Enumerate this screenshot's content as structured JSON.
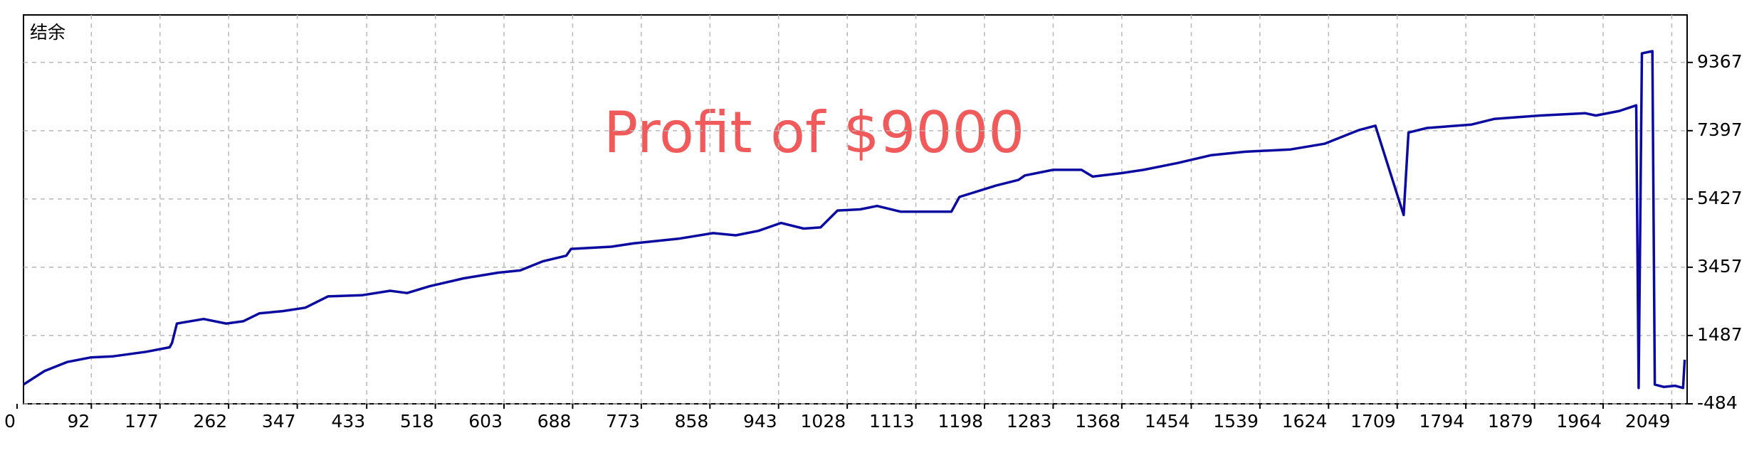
{
  "chart_data": {
    "type": "line",
    "title": "结余",
    "annotation": "Profit of $9000",
    "color": "#0a0aa0",
    "annotation_color": "#f05a5a",
    "grid": true,
    "xlim": [
      8,
      2068
    ],
    "ylim": [
      -484,
      10737
    ],
    "xticks": [
      0,
      92,
      177,
      262,
      347,
      433,
      518,
      603,
      688,
      773,
      858,
      943,
      1028,
      1113,
      1198,
      1283,
      1368,
      1454,
      1539,
      1624,
      1709,
      1794,
      1879,
      1964,
      2049
    ],
    "yticks": [
      -484,
      1487,
      3457,
      5427,
      7397,
      9367
    ],
    "x": [
      8,
      34,
      62,
      91,
      119,
      160,
      189,
      192,
      198,
      231,
      259,
      280,
      300,
      329,
      357,
      385,
      427,
      462,
      483,
      511,
      553,
      596,
      623,
      651,
      680,
      686,
      736,
      764,
      819,
      862,
      890,
      918,
      946,
      974,
      995,
      1016,
      1044,
      1065,
      1094,
      1157,
      1167,
      1212,
      1240,
      1248,
      1283,
      1318,
      1332,
      1367,
      1395,
      1437,
      1479,
      1521,
      1577,
      1619,
      1661,
      1682,
      1717,
      1723,
      1746,
      1801,
      1829,
      1886,
      1942,
      1955,
      1984,
      2005,
      2008,
      2012,
      2025,
      2028,
      2039,
      2053,
      2063,
      2065
    ],
    "values": [
      71,
      462,
      723,
      853,
      886,
      1017,
      1147,
      1277,
      1832,
      1963,
      1832,
      1897,
      2126,
      2191,
      2289,
      2615,
      2648,
      2778,
      2713,
      2908,
      3137,
      3300,
      3365,
      3626,
      3789,
      3985,
      4050,
      4148,
      4279,
      4442,
      4377,
      4507,
      4735,
      4572,
      4605,
      5094,
      5127,
      5225,
      5061,
      5061,
      5485,
      5812,
      5975,
      6105,
      6268,
      6268,
      6073,
      6170,
      6268,
      6464,
      6692,
      6790,
      6856,
      7019,
      7410,
      7541,
      4964,
      7345,
      7475,
      7573,
      7736,
      7834,
      7899,
      7834,
      7965,
      8128,
      -27,
      9628,
      9693,
      71,
      5,
      38,
      -27,
      788
    ]
  }
}
